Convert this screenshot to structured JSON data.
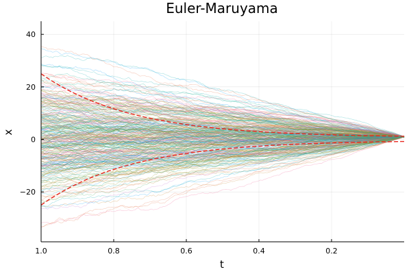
{
  "chart_data": {
    "type": "line",
    "title": "Euler-Maruyama",
    "xlabel": "t",
    "ylabel": "x",
    "x_reversed": true,
    "xlim": [
      1.0,
      0.0
    ],
    "ylim": [
      -39,
      45
    ],
    "xticks": [
      1.0,
      0.8,
      0.6,
      0.4,
      0.2
    ],
    "xtick_labels": [
      "1.0",
      "0.8",
      "0.6",
      "0.4",
      "0.2"
    ],
    "yticks": [
      -20,
      0,
      20,
      40
    ],
    "ytick_labels": [
      "−20",
      "0",
      "20",
      "40"
    ],
    "grid": true,
    "legend": "none",
    "paths": {
      "count": 300,
      "t_start": 1.0,
      "t_end": 0.0,
      "initial_spread_sd": 12.5,
      "final_value": 1.0,
      "alpha": 0.3,
      "palette": [
        "#009AFA",
        "#E36F47",
        "#3EA44E",
        "#C371D2",
        "#AC8E18",
        "#00A9AD",
        "#ED5E93",
        "#C68225",
        "#00A98D",
        "#8E971D"
      ]
    },
    "envelopes": [
      {
        "label": "upper",
        "y_at_t1": 25,
        "y_at_t0": 1.2,
        "color": "#E8261D",
        "style": "dashed"
      },
      {
        "label": "lower",
        "y_at_t1": -25,
        "y_at_t0": -0.8,
        "color": "#E8261D",
        "style": "dashed"
      }
    ]
  }
}
